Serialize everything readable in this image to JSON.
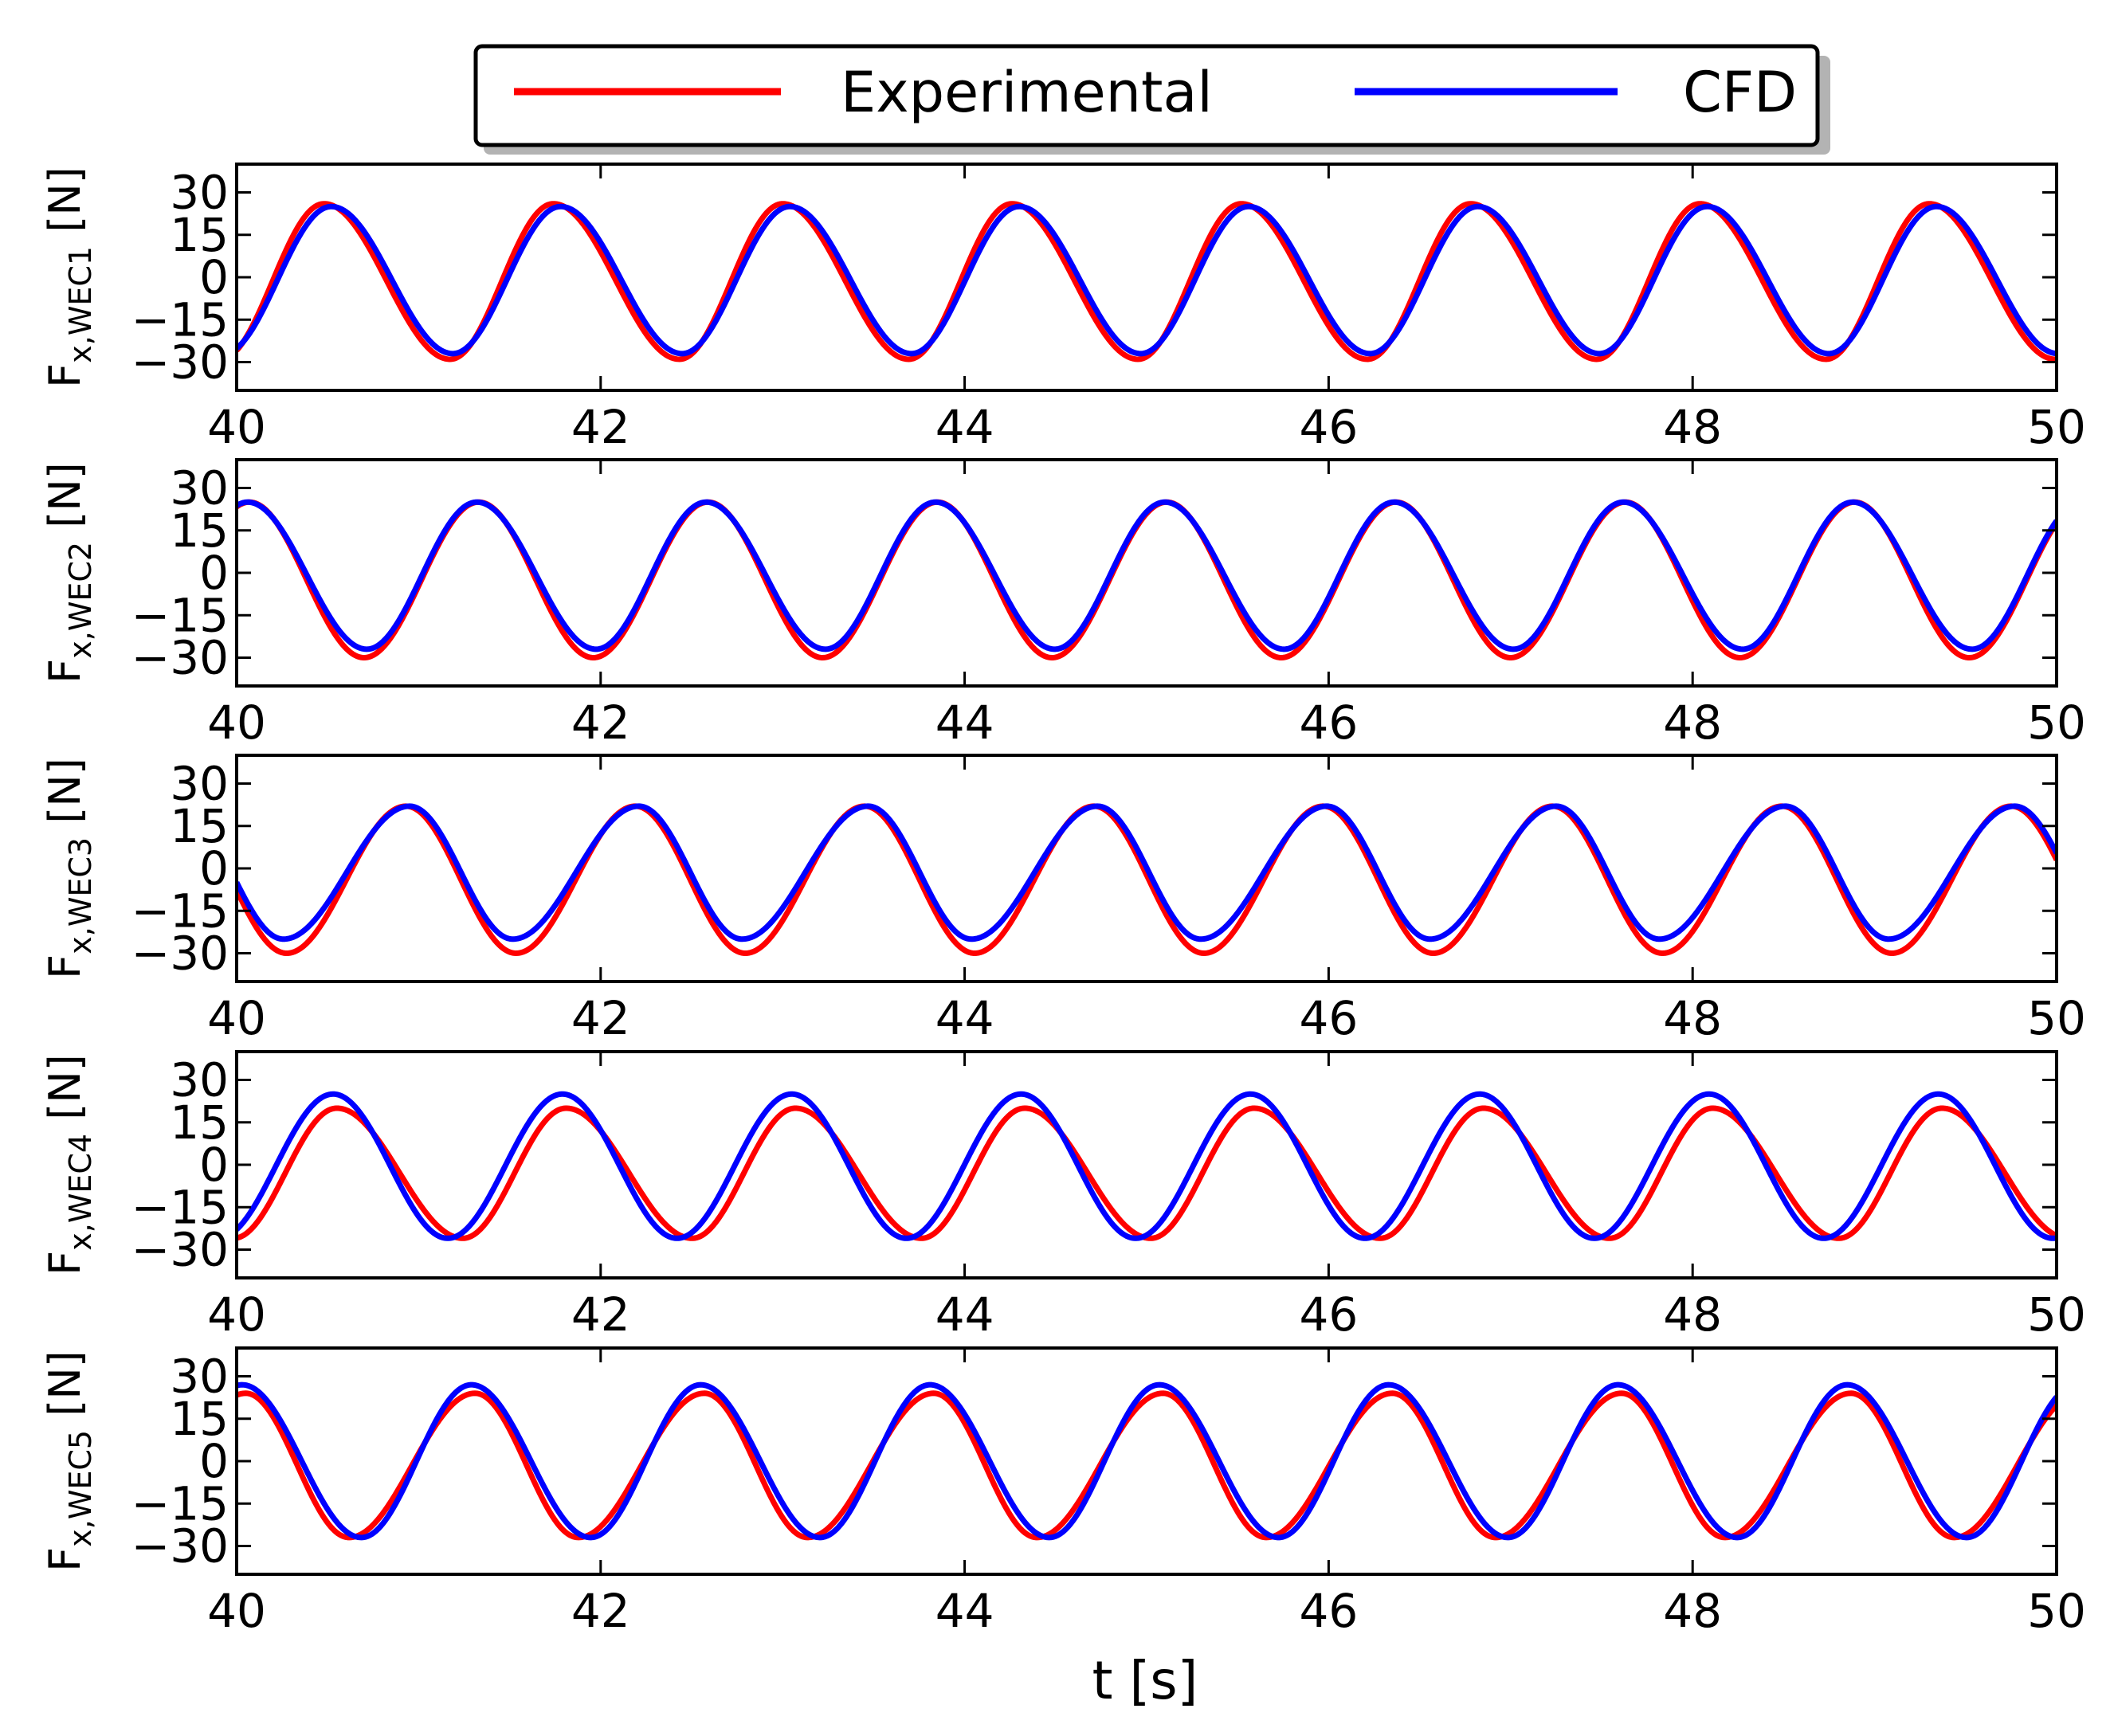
{
  "chart_data": {
    "type": "line",
    "xlabel": "t [s]",
    "xlim": [
      40,
      50
    ],
    "x_ticks": [
      40,
      42,
      44,
      46,
      48,
      50
    ],
    "ylim": [
      -40,
      40
    ],
    "y_ticks": [
      30,
      15,
      0,
      -15,
      -30
    ],
    "y_tick_labels": [
      "30",
      "15",
      "0",
      "−15",
      "−30"
    ],
    "legend": {
      "placement": "top-center",
      "entries": [
        {
          "name": "Experimental",
          "color": "#ff0000"
        },
        {
          "name": "CFD",
          "color": "#0000ff"
        }
      ]
    },
    "period_s": 1.26,
    "panels": [
      {
        "id": "WEC1",
        "ylabel_main": "F",
        "ylabel_sub": "x,WEC1",
        "ylabel_unit": " [N]",
        "series": [
          {
            "name": "Experimental",
            "peak_t": 40.48,
            "max": 26,
            "min": -29,
            "rise_bias": 0.45
          },
          {
            "name": "CFD",
            "peak_t": 40.52,
            "max": 25,
            "min": -27,
            "rise_bias": 0.47
          }
        ]
      },
      {
        "id": "WEC2",
        "ylabel_main": "F",
        "ylabel_sub": "x,WEC2",
        "ylabel_unit": " [N]",
        "series": [
          {
            "name": "Experimental",
            "peak_t": 40.07,
            "max": 25,
            "min": -30,
            "rise_bias": 0.5
          },
          {
            "name": "CFD",
            "peak_t": 40.06,
            "max": 25,
            "min": -27,
            "rise_bias": 0.48
          }
        ]
      },
      {
        "id": "WEC3",
        "ylabel_main": "F",
        "ylabel_sub": "x,WEC3",
        "ylabel_unit": " [N]",
        "series": [
          {
            "name": "Experimental",
            "peak_t": 40.93,
            "max": 22,
            "min": -30,
            "rise_bias": 0.52
          },
          {
            "name": "CFD",
            "peak_t": 40.95,
            "max": 22,
            "min": -25,
            "rise_bias": 0.55
          }
        ]
      },
      {
        "id": "WEC4",
        "ylabel_main": "F",
        "ylabel_sub": "x,WEC4",
        "ylabel_unit": " [N]",
        "series": [
          {
            "name": "Experimental",
            "peak_t": 40.55,
            "max": 20,
            "min": -26,
            "rise_bias": 0.45
          },
          {
            "name": "CFD",
            "peak_t": 40.53,
            "max": 25,
            "min": -26,
            "rise_bias": 0.5
          }
        ]
      },
      {
        "id": "WEC5",
        "ylabel_main": "F",
        "ylabel_sub": "x,WEC5",
        "ylabel_unit": " [N]",
        "series": [
          {
            "name": "Experimental",
            "peak_t": 40.05,
            "max": 24,
            "min": -27,
            "rise_bias": 0.55
          },
          {
            "name": "CFD",
            "peak_t": 40.03,
            "max": 27,
            "min": -27,
            "rise_bias": 0.48
          }
        ]
      }
    ]
  }
}
